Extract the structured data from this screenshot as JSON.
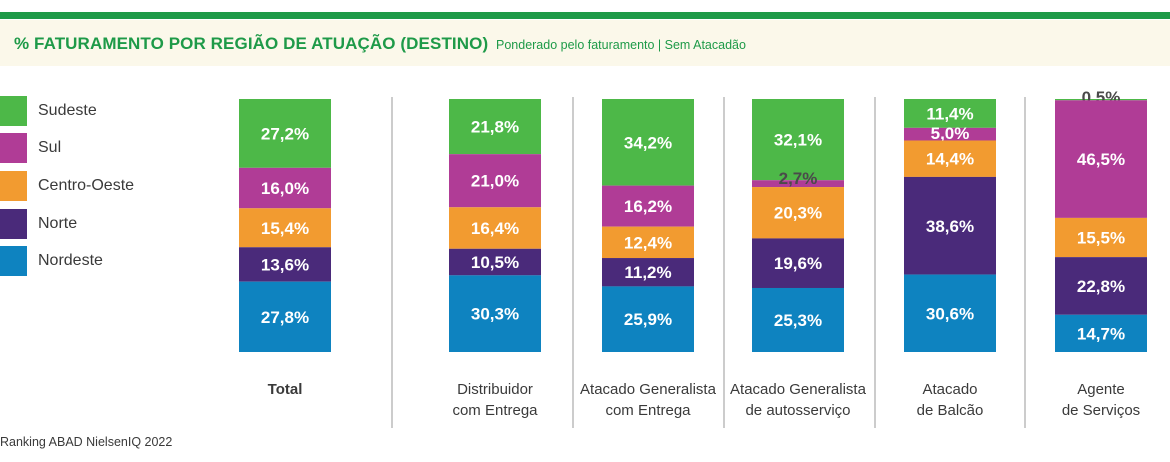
{
  "header": {
    "title": "% FATURAMENTO POR REGIÃO DE ATUAÇÃO (DESTINO)",
    "subtitle": "Ponderado pelo faturamento | Sem Atacadão"
  },
  "footer": {
    "source": "Ranking ABAD NielsenIQ 2022"
  },
  "colors": {
    "accent": "#1e9a48",
    "header_band": "#fbf8ea",
    "Sudeste": "#4db848",
    "Sul": "#b03c96",
    "Centro-Oeste": "#f29b30",
    "Norte": "#4a2a7a",
    "Nordeste": "#0e83c0"
  },
  "chart_data": {
    "type": "bar",
    "stacked": true,
    "unit": "%",
    "legend_position": "left",
    "categories": [
      "Total",
      "Distribuidor com Entrega",
      "Atacado Generalista com Entrega",
      "Atacado Generalista de autosserviço",
      "Atacado de Balcão",
      "Agente de Serviços"
    ],
    "category_lines": [
      [
        "Total"
      ],
      [
        "Distribuidor",
        "com Entrega"
      ],
      [
        "Atacado Generalista",
        "com Entrega"
      ],
      [
        "Atacado Generalista",
        "de autosserviço"
      ],
      [
        "Atacado",
        "de Balcão"
      ],
      [
        "Agente",
        "de Serviços"
      ]
    ],
    "series": [
      {
        "name": "Sudeste",
        "values": [
          27.2,
          21.8,
          34.2,
          32.1,
          11.4,
          0.5
        ],
        "labels": [
          "27,2%",
          "21,8%",
          "34,2%",
          "32,1%",
          "11,4%",
          "0,5%"
        ]
      },
      {
        "name": "Sul",
        "values": [
          16.0,
          21.0,
          16.2,
          2.7,
          5.0,
          46.5
        ],
        "labels": [
          "16,0%",
          "21,0%",
          "16,2%",
          "2,7%",
          "5,0%",
          "46,5%"
        ]
      },
      {
        "name": "Centro-Oeste",
        "values": [
          15.4,
          16.4,
          12.4,
          20.3,
          14.4,
          15.5
        ],
        "labels": [
          "15,4%",
          "16,4%",
          "12,4%",
          "20,3%",
          "14,4%",
          "15,5%"
        ]
      },
      {
        "name": "Norte",
        "values": [
          13.6,
          10.5,
          11.2,
          19.6,
          38.6,
          22.8
        ],
        "labels": [
          "13,6%",
          "10,5%",
          "11,2%",
          "19,6%",
          "38,6%",
          "22,8%"
        ]
      },
      {
        "name": "Nordeste",
        "values": [
          27.8,
          30.3,
          25.9,
          25.3,
          30.6,
          14.7
        ],
        "labels": [
          "27,8%",
          "30,3%",
          "25,9%",
          "25,3%",
          "30,6%",
          "14,7%"
        ]
      }
    ],
    "legend_order": [
      "Sudeste",
      "Sul",
      "Centro-Oeste",
      "Norte",
      "Nordeste"
    ]
  }
}
